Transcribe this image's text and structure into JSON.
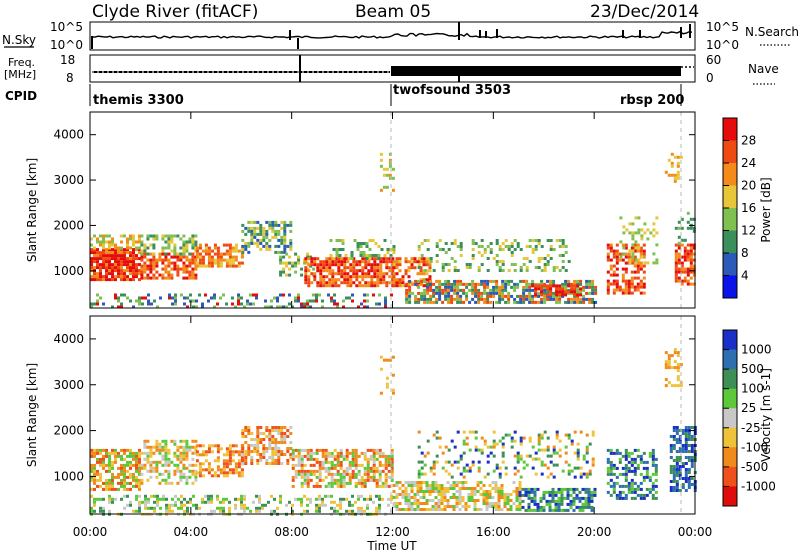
{
  "header": {
    "station": "Clyde River (fitACF)",
    "beam": "Beam 05",
    "date": "23/Dec/2014"
  },
  "top_panel": {
    "left_label": "N.Sky",
    "left_ticks": [
      "10^5",
      "10^0"
    ],
    "right_label": "N.Search",
    "right_ticks": [
      "10^5",
      "10^0"
    ]
  },
  "freq_panel": {
    "left_label_line1": "Freq.",
    "left_label_line2": "[MHz]",
    "left_ticks": [
      "18",
      "8"
    ],
    "right_label": "Nave",
    "right_ticks": [
      "60",
      "0"
    ]
  },
  "cpid": {
    "label": "CPID",
    "modes": [
      {
        "name": "themis 3300",
        "start_hour": 0
      },
      {
        "name": "twofsound 3503",
        "start_hour": 12
      },
      {
        "name": "rbsp 200",
        "start_hour": 24
      }
    ]
  },
  "chart_data": [
    {
      "type": "heatmap",
      "title": "",
      "xlabel": "Time UT",
      "ylabel": "Slant Range [km]",
      "xlim": [
        0,
        24
      ],
      "ylim": [
        180,
        4500
      ],
      "x_ticks": [
        "00:00",
        "04:00",
        "08:00",
        "12:00",
        "16:00",
        "20:00",
        "00:00"
      ],
      "y_ticks": [
        "1000",
        "2000",
        "3000",
        "4000"
      ],
      "colorbar": {
        "label": "Power [dB]",
        "ticks": [
          "4",
          "8",
          "12",
          "16",
          "20",
          "24",
          "28"
        ],
        "range": [
          0,
          30
        ],
        "colors": [
          "#0a14e8",
          "#2b5ab8",
          "#3a8f5a",
          "#7fc050",
          "#e7c63a",
          "#f48a18",
          "#ef4a12",
          "#e60c0c"
        ]
      },
      "grid": false
    },
    {
      "type": "heatmap",
      "title": "",
      "xlabel": "Time UT",
      "ylabel": "Slant Range [km]",
      "xlim": [
        0,
        24
      ],
      "ylim": [
        180,
        4500
      ],
      "x_ticks": [
        "00:00",
        "04:00",
        "08:00",
        "12:00",
        "16:00",
        "20:00",
        "00:00"
      ],
      "y_ticks": [
        "1000",
        "2000",
        "3000",
        "4000"
      ],
      "colorbar": {
        "label": "Velocity [m s-1]",
        "ticks": [
          "1000",
          "500",
          "100",
          "25",
          "-25",
          "-100",
          "-500",
          "-1000"
        ],
        "range": [
          -1000,
          1000
        ],
        "colors": [
          "#1a2ec8",
          "#2e6fb0",
          "#3d8f55",
          "#5dc83a",
          "#c8c8c8",
          "#f0c23a",
          "#f08a1a",
          "#f0501a",
          "#e00c0c"
        ]
      },
      "grid": false
    }
  ]
}
